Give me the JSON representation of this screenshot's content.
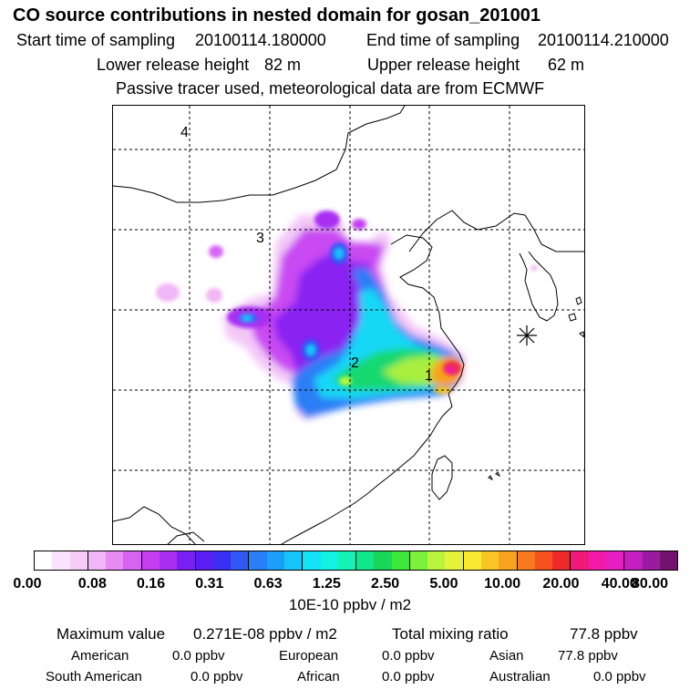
{
  "header": {
    "title": "CO  source contributions in nested domain for gosan_201001",
    "start_label": "Start time of sampling",
    "start_value": "20100114.180000",
    "end_label": "End time of sampling",
    "end_value": "20100114.210000",
    "lower_label": "Lower release height",
    "lower_value": "82 m",
    "upper_label": "Upper release height",
    "upper_value": "62 m",
    "note": "Passive tracer used, meteorological data are from ECMWF"
  },
  "map": {
    "track_labels": [
      "1",
      "2",
      "3",
      "4"
    ],
    "colors": {
      "coast": "#000000",
      "grid": "#000000",
      "receptor": "#000000"
    }
  },
  "colorbar": {
    "tick_labels": [
      "0.00",
      "0.08",
      "0.16",
      "0.31",
      "0.63",
      "1.25",
      "2.50",
      "5.00",
      "10.00",
      "20.00",
      "40.00",
      "80.00"
    ],
    "colors": [
      "#ffffff",
      "#fbe3fb",
      "#f5cdf7",
      "#f0b6f5",
      "#e58bf3",
      "#d863f2",
      "#c43ef2",
      "#a82ef2",
      "#7a1ff2",
      "#5a1ef2",
      "#3a2ef2",
      "#2f58f4",
      "#2a7ef6",
      "#1aa0f8",
      "#16c4fa",
      "#13e2f7",
      "#12f2e0",
      "#12f2b6",
      "#10e58a",
      "#18d65a",
      "#3ce63a",
      "#7af23a",
      "#b8f53c",
      "#e4f23a",
      "#f9ea33",
      "#f8c624",
      "#f8a21e",
      "#f77a1e",
      "#f4511e",
      "#ef2a2a",
      "#f21a78",
      "#f21aa8",
      "#e61ec4",
      "#c21ec0",
      "#9a1aa0",
      "#74126f"
    ],
    "unit": "10E-10 ppbv / m2"
  },
  "stats": {
    "max_label": "Maximum value",
    "max_value": "0.271E-08 ppbv / m2",
    "total_label": "Total mixing ratio",
    "total_value": "77.8 ppbv",
    "regions": [
      {
        "name": "American",
        "value": "0.0 ppbv"
      },
      {
        "name": "European",
        "value": "0.0 ppbv"
      },
      {
        "name": "Asian",
        "value": "77.8 ppbv"
      },
      {
        "name": "South American",
        "value": "0.0 ppbv"
      },
      {
        "name": "African",
        "value": "0.0 ppbv"
      },
      {
        "name": "Australian",
        "value": "0.0 ppbv"
      }
    ]
  }
}
